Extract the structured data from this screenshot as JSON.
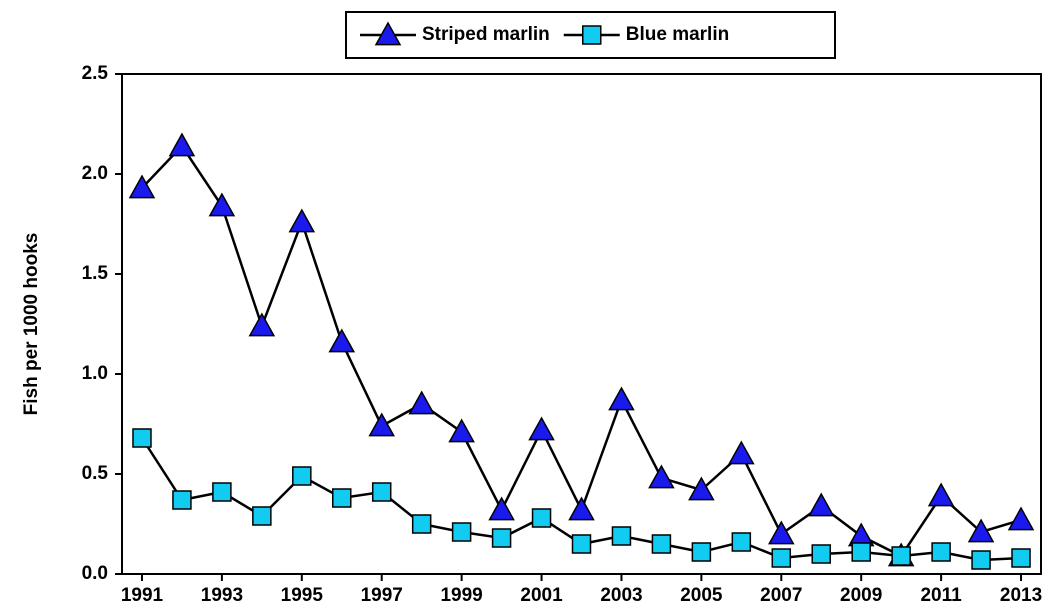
{
  "chart_data": {
    "type": "line",
    "y_label": "Fish per 1000 hooks",
    "x": [
      1991,
      1992,
      1993,
      1994,
      1995,
      1996,
      1997,
      1998,
      1999,
      2000,
      2001,
      2002,
      2003,
      2004,
      2005,
      2006,
      2007,
      2008,
      2009,
      2010,
      2011,
      2012,
      2013
    ],
    "series": [
      {
        "name": "Striped marlin",
        "color": "#1a1aee",
        "marker": "triangle",
        "values": [
          1.93,
          2.14,
          1.84,
          1.24,
          1.76,
          1.16,
          0.74,
          0.85,
          0.71,
          0.32,
          0.72,
          0.32,
          0.87,
          0.48,
          0.42,
          0.6,
          0.2,
          0.34,
          0.19,
          0.09,
          0.39,
          0.21,
          0.27
        ]
      },
      {
        "name": "Blue marlin",
        "color": "#11ccf0",
        "marker": "square",
        "values": [
          0.68,
          0.37,
          0.41,
          0.29,
          0.49,
          0.38,
          0.41,
          0.25,
          0.21,
          0.18,
          0.28,
          0.15,
          0.19,
          0.15,
          0.11,
          0.16,
          0.08,
          0.1,
          0.11,
          0.09,
          0.11,
          0.07,
          0.08
        ]
      }
    ],
    "xlim": [
      1990.5,
      2013.5
    ],
    "xticks": [
      1991,
      1993,
      1995,
      1997,
      1999,
      2001,
      2003,
      2005,
      2007,
      2009,
      2011,
      2013
    ],
    "ylim": [
      0,
      2.5
    ],
    "yticks": [
      {
        "value": 0,
        "label": "0.0"
      },
      0.5,
      {
        "value": 1,
        "label": "1.0"
      },
      1.5,
      {
        "value": 2,
        "label": "2.0"
      },
      2.5
    ],
    "legend": "top"
  }
}
